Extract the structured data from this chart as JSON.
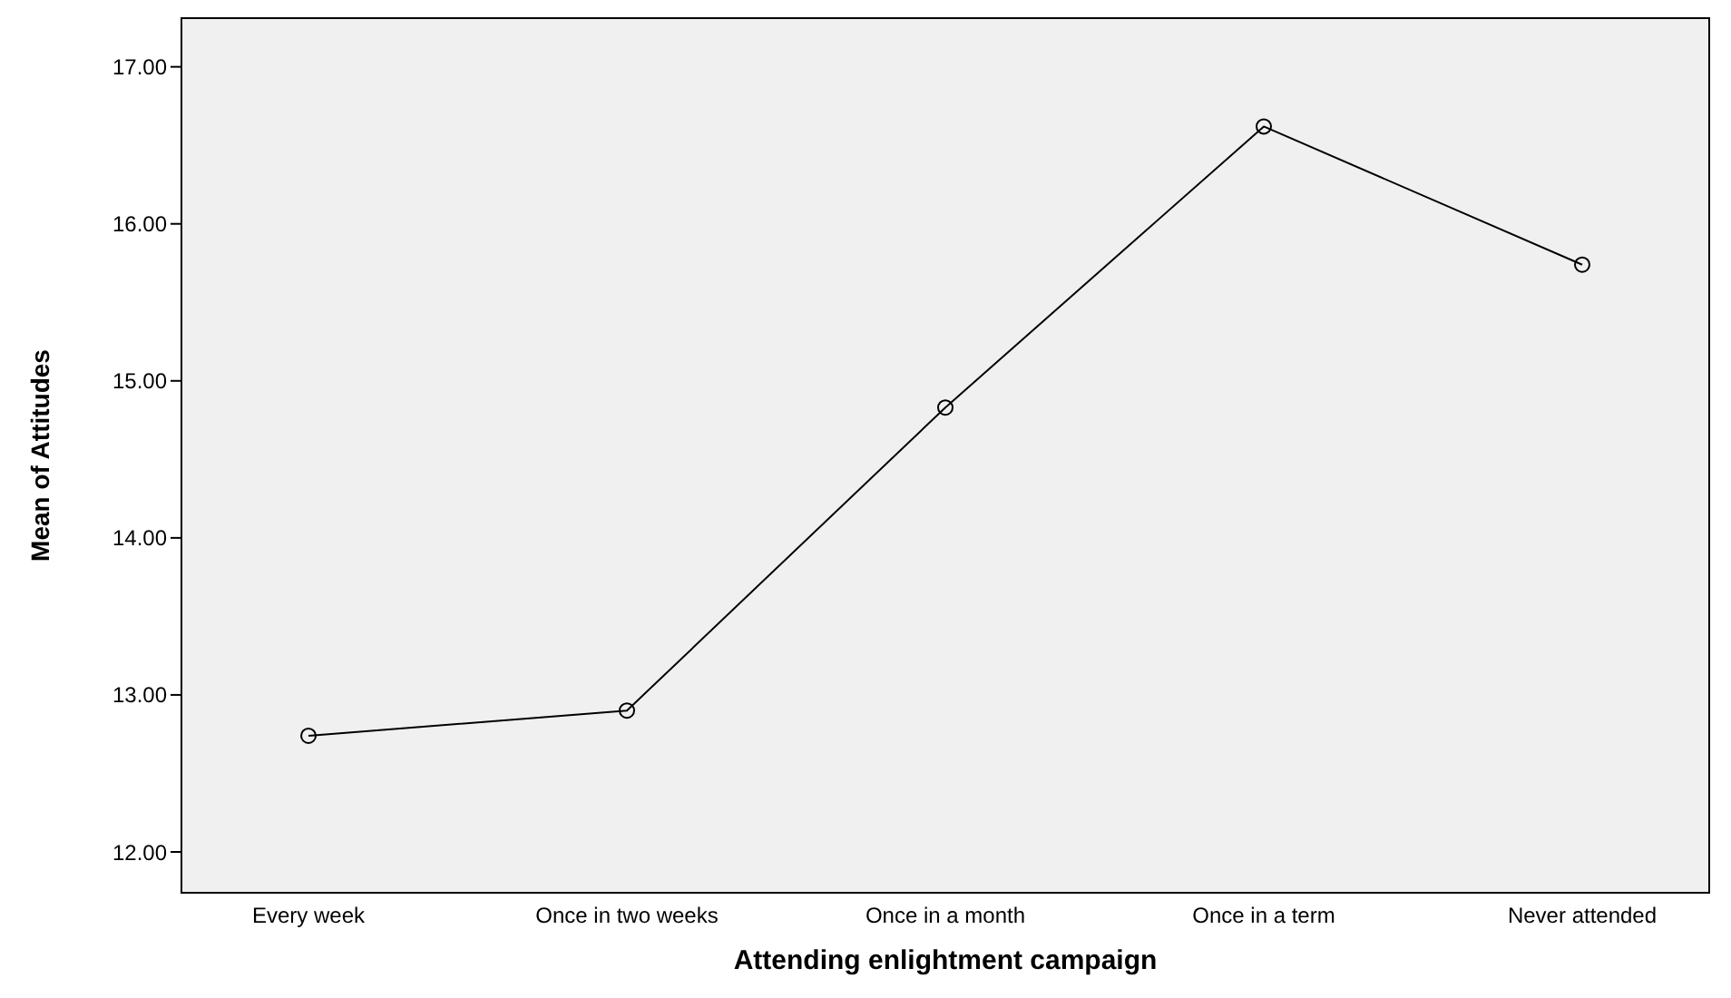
{
  "chart_data": {
    "type": "line",
    "xlabel": "Attending enlightment campaign",
    "ylabel": "Mean of Attitudes",
    "categories": [
      "Every week",
      "Once in two weeks",
      "Once in a month",
      "Once in a term",
      "Never attended"
    ],
    "series": [
      {
        "color": "#000000",
        "values": [
          12.74,
          12.9,
          14.83,
          16.62,
          15.74
        ]
      }
    ],
    "ylim": [
      11.74,
      17.31
    ],
    "yticks": [
      {
        "value": 12,
        "label": "12.00"
      },
      {
        "value": 13,
        "label": "13.00"
      },
      {
        "value": 14,
        "label": "14.00"
      },
      {
        "value": 15,
        "label": "15.00"
      },
      {
        "value": 16,
        "label": "16.00"
      },
      {
        "value": 17,
        "label": "17.00"
      }
    ],
    "legend": false,
    "marker": "circle",
    "line_style": "solid"
  }
}
